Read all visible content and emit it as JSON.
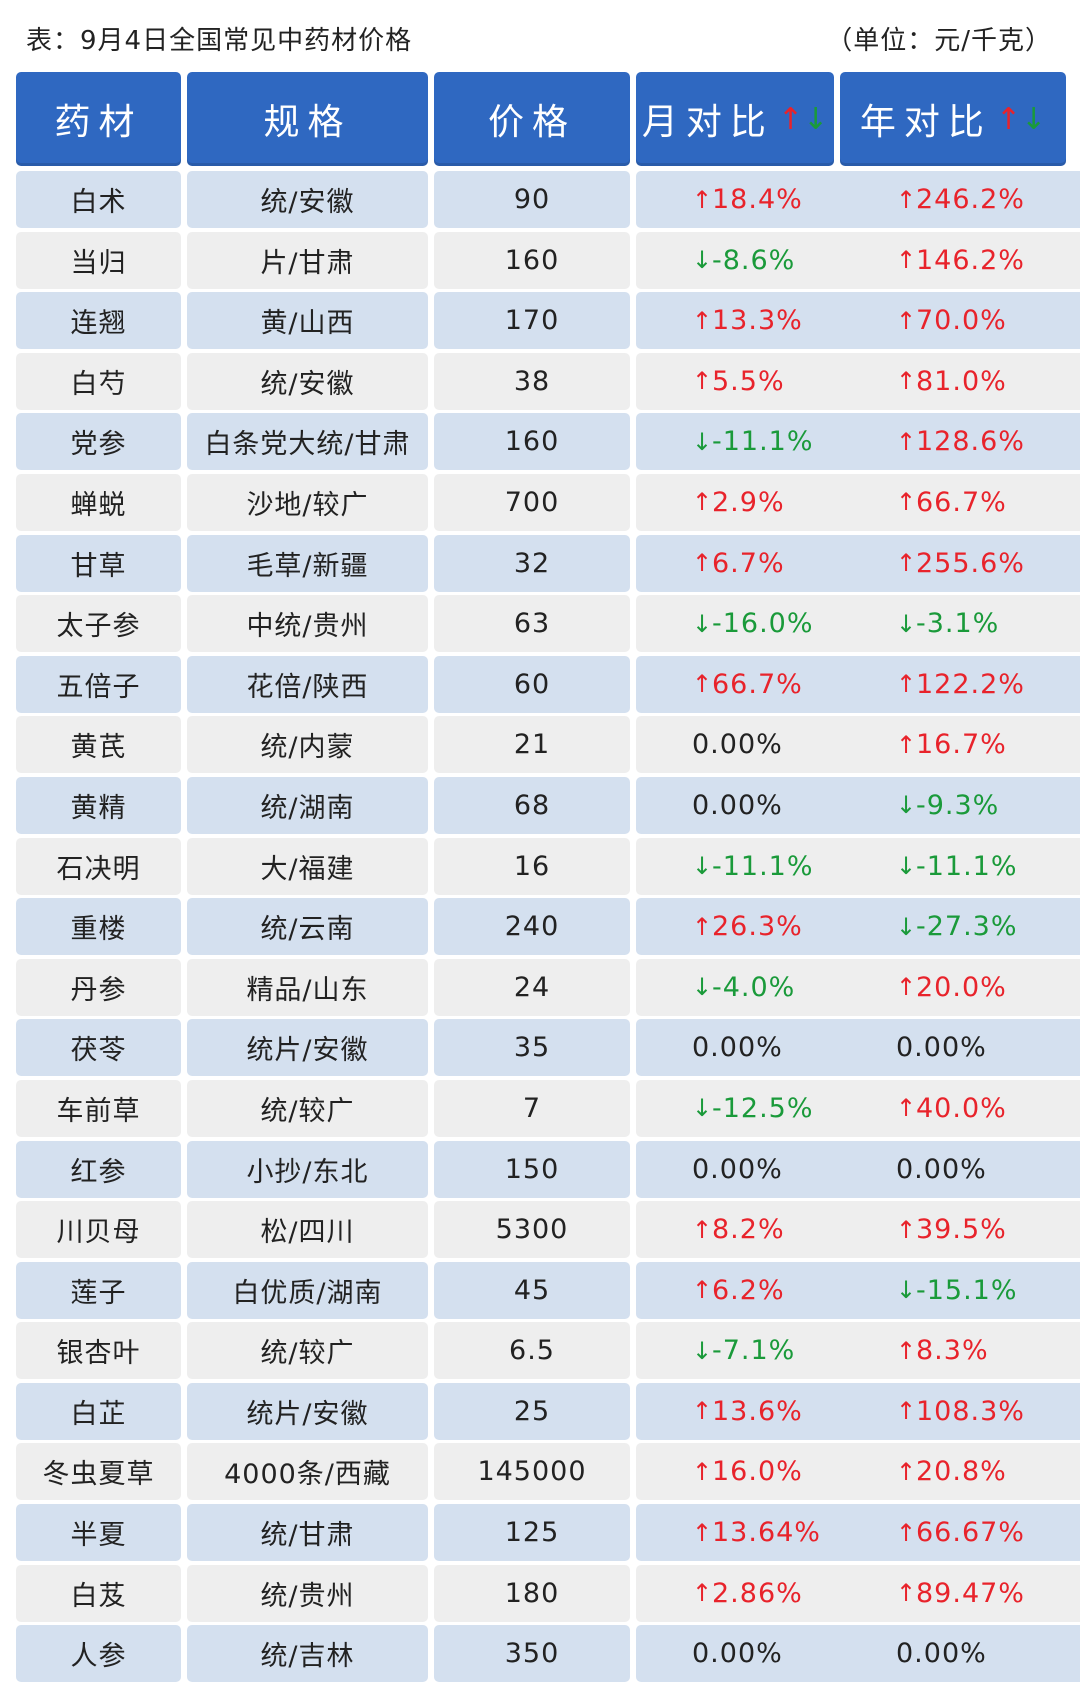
{
  "caption": {
    "title": "表：9月4日全国常见中药材价格",
    "unit": "（单位：元/千克）"
  },
  "colors": {
    "header_bg": "#2f68c1",
    "row_blue": "#d4e0ef",
    "row_gray": "#eeeeee",
    "up": "#e8232b",
    "down": "#1a9a3a"
  },
  "headers": {
    "herb": "药材",
    "spec": "规格",
    "price": "价格",
    "mom": "月对比",
    "yoy": "年对比",
    "arrow_up_icon": "↑",
    "arrow_down_icon": "↓"
  },
  "rows": [
    {
      "herb": "白术",
      "spec": "统/安徽",
      "price": "90",
      "mom": "18.4%",
      "mom_dir": "up",
      "yoy": "246.2%",
      "yoy_dir": "up"
    },
    {
      "herb": "当归",
      "spec": "片/甘肃",
      "price": "160",
      "mom": "-8.6%",
      "mom_dir": "down",
      "yoy": "146.2%",
      "yoy_dir": "up"
    },
    {
      "herb": "连翘",
      "spec": "黄/山西",
      "price": "170",
      "mom": "13.3%",
      "mom_dir": "up",
      "yoy": "70.0%",
      "yoy_dir": "up"
    },
    {
      "herb": "白芍",
      "spec": "统/安徽",
      "price": "38",
      "mom": "5.5%",
      "mom_dir": "up",
      "yoy": "81.0%",
      "yoy_dir": "up"
    },
    {
      "herb": "党参",
      "spec": "白条党大统/甘肃",
      "price": "160",
      "mom": "-11.1%",
      "mom_dir": "down",
      "yoy": "128.6%",
      "yoy_dir": "up"
    },
    {
      "herb": "蝉蜕",
      "spec": "沙地/较广",
      "price": "700",
      "mom": "2.9%",
      "mom_dir": "up",
      "yoy": "66.7%",
      "yoy_dir": "up"
    },
    {
      "herb": "甘草",
      "spec": "毛草/新疆",
      "price": "32",
      "mom": "6.7%",
      "mom_dir": "up",
      "yoy": "255.6%",
      "yoy_dir": "up"
    },
    {
      "herb": "太子参",
      "spec": "中统/贵州",
      "price": "63",
      "mom": "-16.0%",
      "mom_dir": "down",
      "yoy": "-3.1%",
      "yoy_dir": "down"
    },
    {
      "herb": "五倍子",
      "spec": "花倍/陕西",
      "price": "60",
      "mom": "66.7%",
      "mom_dir": "up",
      "yoy": "122.2%",
      "yoy_dir": "up"
    },
    {
      "herb": "黄芪",
      "spec": "统/内蒙",
      "price": "21",
      "mom": "0.00%",
      "mom_dir": "flat",
      "yoy": "16.7%",
      "yoy_dir": "up"
    },
    {
      "herb": "黄精",
      "spec": "统/湖南",
      "price": "68",
      "mom": "0.00%",
      "mom_dir": "flat",
      "yoy": "-9.3%",
      "yoy_dir": "down"
    },
    {
      "herb": "石决明",
      "spec": "大/福建",
      "price": "16",
      "mom": "-11.1%",
      "mom_dir": "down",
      "yoy": "-11.1%",
      "yoy_dir": "down"
    },
    {
      "herb": "重楼",
      "spec": "统/云南",
      "price": "240",
      "mom": "26.3%",
      "mom_dir": "up",
      "yoy": "-27.3%",
      "yoy_dir": "down"
    },
    {
      "herb": "丹参",
      "spec": "精品/山东",
      "price": "24",
      "mom": "-4.0%",
      "mom_dir": "down",
      "yoy": "20.0%",
      "yoy_dir": "up"
    },
    {
      "herb": "茯苓",
      "spec": "统片/安徽",
      "price": "35",
      "mom": "0.00%",
      "mom_dir": "flat",
      "yoy": "0.00%",
      "yoy_dir": "flat"
    },
    {
      "herb": "车前草",
      "spec": "统/较广",
      "price": "7",
      "mom": "-12.5%",
      "mom_dir": "down",
      "yoy": "40.0%",
      "yoy_dir": "up"
    },
    {
      "herb": "红参",
      "spec": "小抄/东北",
      "price": "150",
      "mom": "0.00%",
      "mom_dir": "flat",
      "yoy": "0.00%",
      "yoy_dir": "flat"
    },
    {
      "herb": "川贝母",
      "spec": "松/四川",
      "price": "5300",
      "mom": "8.2%",
      "mom_dir": "up",
      "yoy": "39.5%",
      "yoy_dir": "up"
    },
    {
      "herb": "莲子",
      "spec": "白优质/湖南",
      "price": "45",
      "mom": "6.2%",
      "mom_dir": "up",
      "yoy": "-15.1%",
      "yoy_dir": "down"
    },
    {
      "herb": "银杏叶",
      "spec": "统/较广",
      "price": "6.5",
      "mom": "-7.1%",
      "mom_dir": "down",
      "yoy": "8.3%",
      "yoy_dir": "up"
    },
    {
      "herb": "白芷",
      "spec": "统片/安徽",
      "price": "25",
      "mom": "13.6%",
      "mom_dir": "up",
      "yoy": "108.3%",
      "yoy_dir": "up"
    },
    {
      "herb": "冬虫夏草",
      "spec": "4000条/西藏",
      "price": "145000",
      "mom": "16.0%",
      "mom_dir": "up",
      "yoy": "20.8%",
      "yoy_dir": "up"
    },
    {
      "herb": "半夏",
      "spec": "统/甘肃",
      "price": "125",
      "mom": "13.64%",
      "mom_dir": "up",
      "yoy": "66.67%",
      "yoy_dir": "up"
    },
    {
      "herb": "白芨",
      "spec": "统/贵州",
      "price": "180",
      "mom": "2.86%",
      "mom_dir": "up",
      "yoy": "89.47%",
      "yoy_dir": "up"
    },
    {
      "herb": "人参",
      "spec": "统/吉林",
      "price": "350",
      "mom": "0.00%",
      "mom_dir": "flat",
      "yoy": "0.00%",
      "yoy_dir": "flat"
    }
  ]
}
